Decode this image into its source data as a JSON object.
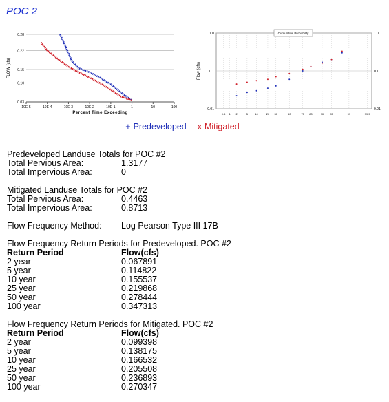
{
  "title": "POC 2",
  "charts": [
    {
      "type": "line",
      "xscale": "log",
      "y_label": "FLOW (cfs)",
      "x_label": "Percent Time Exceeding",
      "grid": true,
      "xlim": [
        1e-05,
        100
      ],
      "ylim": [
        0.03,
        0.28
      ],
      "xticks": [
        {
          "value": 1e-05,
          "label": "10E-5"
        },
        {
          "value": 0.0001,
          "label": "10E-4"
        },
        {
          "value": 0.001,
          "label": "10E-3"
        },
        {
          "value": 0.01,
          "label": "10E-2"
        },
        {
          "value": 0.1,
          "label": "10E-1"
        },
        1,
        10,
        100
      ],
      "yticks": [
        0.03,
        {
          "value": 0.1,
          "label": "0.10"
        },
        0.15,
        0.22,
        0.28
      ],
      "series": [
        {
          "name": "Predeveloped",
          "color": "#1f2fb8",
          "x": [
            0.0004,
            0.0006,
            0.001,
            0.0015,
            0.003,
            0.01,
            0.03,
            0.1,
            0.3,
            1
          ],
          "values": [
            0.28,
            0.25,
            0.21,
            0.18,
            0.155,
            0.14,
            0.12,
            0.095,
            0.065,
            0.035
          ]
        },
        {
          "name": "Mitigated",
          "color": "#d0202a",
          "x": [
            5e-05,
            0.0001,
            0.0003,
            0.001,
            0.003,
            0.01,
            0.03,
            0.1,
            0.3,
            1
          ],
          "values": [
            0.25,
            0.22,
            0.19,
            0.16,
            0.14,
            0.12,
            0.1,
            0.075,
            0.05,
            0.035
          ]
        }
      ]
    },
    {
      "type": "scatter",
      "xscale": "probability",
      "yscale": "log",
      "title": "Cumulative Probability",
      "y_label": "Flow (cfs)",
      "grid": true,
      "xlim": [
        0.2,
        99.95
      ],
      "ylim": [
        0.01,
        1
      ],
      "xticks": [
        0.5,
        1,
        2,
        5,
        10,
        20,
        30,
        50,
        70,
        80,
        90,
        95,
        99,
        99.9
      ],
      "yticks": [
        0.01,
        0.1,
        {
          "value": 1,
          "label": "1.0"
        }
      ],
      "series": [
        {
          "name": "Predeveloped",
          "color": "#1f2fb8",
          "x": [
            2,
            5,
            10,
            20,
            30,
            50,
            70,
            80,
            90,
            95,
            98
          ],
          "values": [
            0.022,
            0.027,
            0.03,
            0.035,
            0.04,
            0.06,
            0.1,
            0.13,
            0.17,
            0.2,
            0.3
          ]
        },
        {
          "name": "Mitigated",
          "color": "#d0202a",
          "x": [
            2,
            5,
            10,
            20,
            30,
            50,
            70,
            80,
            90,
            95,
            98
          ],
          "values": [
            0.045,
            0.05,
            0.055,
            0.06,
            0.07,
            0.085,
            0.11,
            0.13,
            0.16,
            0.2,
            0.33
          ]
        }
      ]
    }
  ],
  "legend": [
    {
      "marker": "+",
      "name": "Predeveloped",
      "color": "#1f2fb8"
    },
    {
      "marker": "x",
      "name": "Mitigated",
      "color": "#d0202a"
    }
  ],
  "sections": [
    {
      "heading": "Predeveloped Landuse Totals for POC #2",
      "rows": [
        [
          "Total Pervious Area:",
          "1.3177"
        ],
        [
          "Total Impervious Area:",
          "0"
        ]
      ]
    },
    {
      "heading": "Mitigated Landuse Totals for POC #2",
      "rows": [
        [
          "Total Pervious Area:",
          "0.4463"
        ],
        [
          "Total Impervious Area:",
          "0.8713"
        ]
      ]
    },
    {
      "rows": [
        [
          "Flow Frequency Method:",
          "Log Pearson Type III 17B"
        ]
      ]
    },
    {
      "heading": "Flow Frequency Return Periods for Predeveloped.  POC #2",
      "columns": [
        "Return Period",
        "Flow(cfs)"
      ],
      "rows": [
        [
          "2 year",
          "0.067891"
        ],
        [
          "5 year",
          "0.114822"
        ],
        [
          "10 year",
          "0.155537"
        ],
        [
          "25 year",
          "0.219868"
        ],
        [
          "50 year",
          "0.278444"
        ],
        [
          "100 year",
          "0.347313"
        ]
      ]
    },
    {
      "heading": "Flow Frequency Return Periods for Mitigated.  POC #2",
      "columns": [
        "Return Period",
        "Flow(cfs)"
      ],
      "rows": [
        [
          "2 year",
          "0.099398"
        ],
        [
          "5 year",
          "0.138175"
        ],
        [
          "10 year",
          "0.166532"
        ],
        [
          "25 year",
          "0.205508"
        ],
        [
          "50 year",
          "0.236893"
        ],
        [
          "100 year",
          "0.270347"
        ]
      ]
    }
  ]
}
